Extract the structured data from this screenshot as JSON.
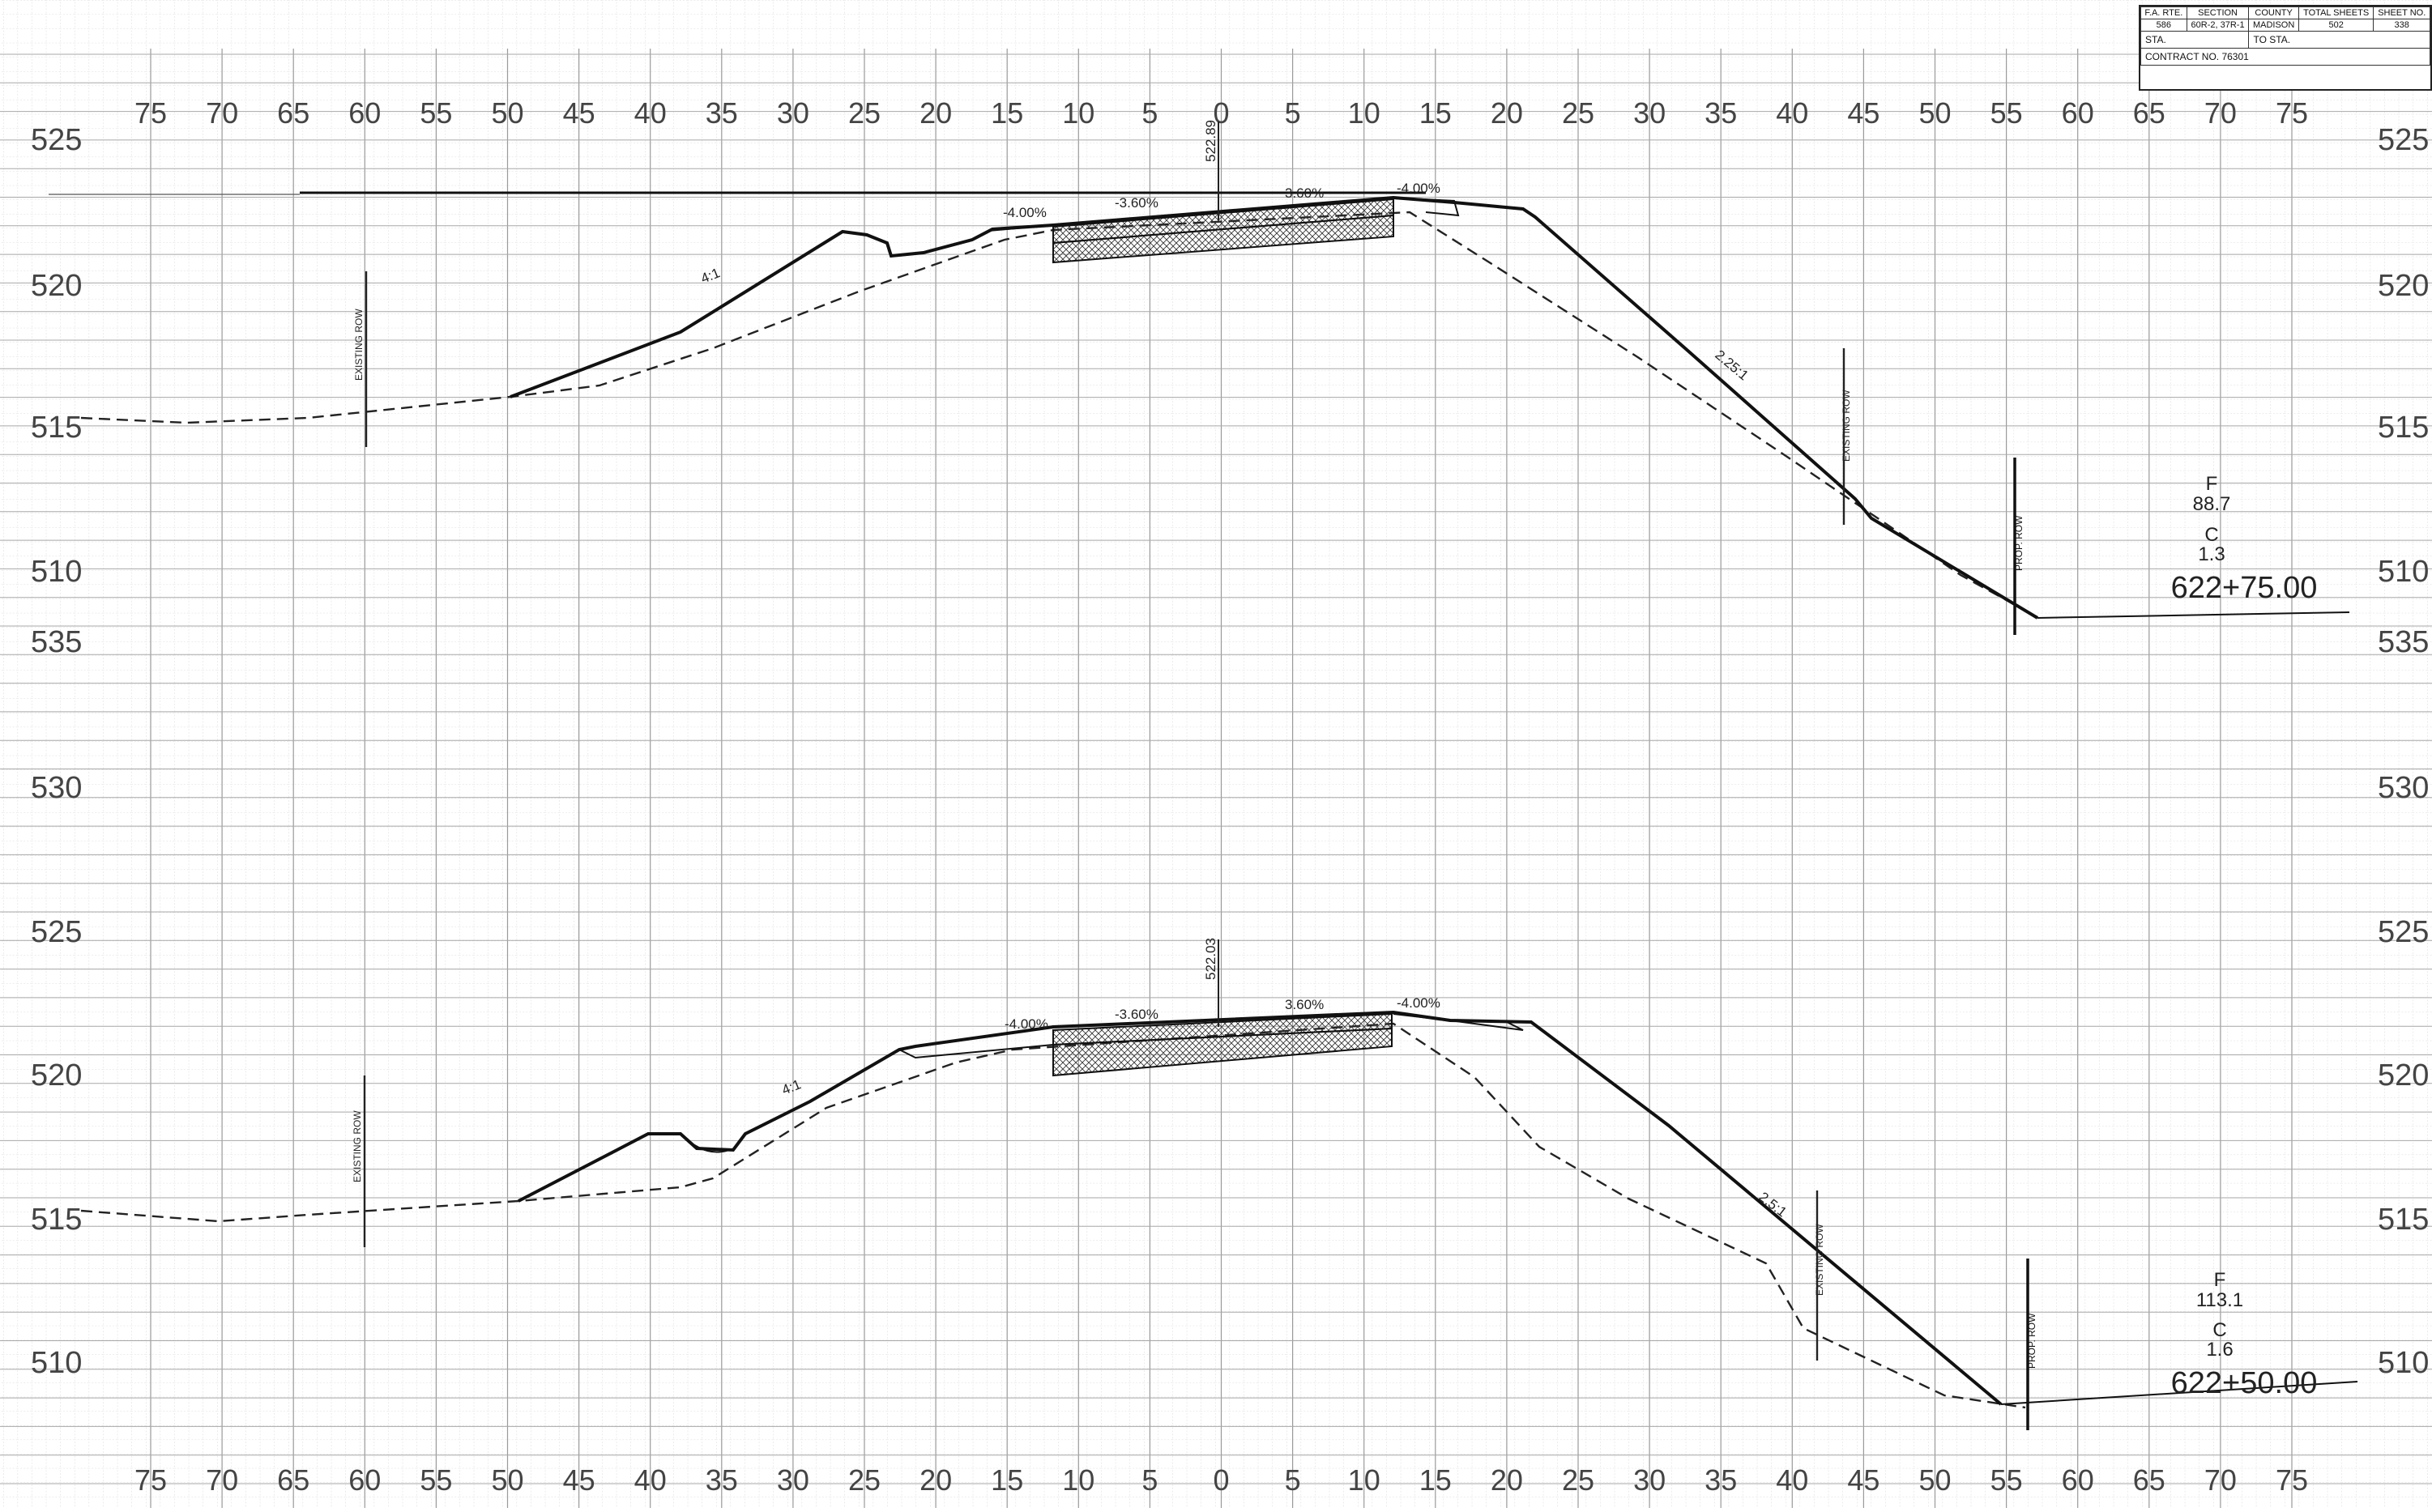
{
  "title_block": {
    "headers": [
      "F.A. RTE.",
      "SECTION",
      "COUNTY",
      "TOTAL SHEETS",
      "SHEET NO."
    ],
    "values": [
      "586",
      "60R-2, 37R-1",
      "MADISON",
      "502",
      "338"
    ],
    "sta_label": "STA.",
    "to_sta_label": "TO STA.",
    "contract": "CONTRACT NO. 76301"
  },
  "offset_labels": [
    "75",
    "70",
    "65",
    "60",
    "55",
    "50",
    "45",
    "40",
    "35",
    "30",
    "25",
    "20",
    "15",
    "10",
    "5",
    "0",
    "5",
    "10",
    "15",
    "20",
    "25",
    "30",
    "35",
    "40",
    "45",
    "50",
    "55",
    "60",
    "65",
    "70",
    "75"
  ],
  "sections": [
    {
      "station": "622+75.00",
      "fill_label": "F",
      "fill_value": "88.7",
      "cut_label": "C",
      "cut_value": "1.3",
      "elevations": [
        "525",
        "520",
        "515",
        "510"
      ],
      "bottom_elevation": "535",
      "cl_elevation": "522.89",
      "slopes": [
        "-4.00%",
        "-3.60%",
        "3.60%",
        "-4.00%"
      ],
      "side_slope_left": "4:1",
      "side_slope_right": "2.25:1",
      "row_existing": "EXISTING ROW",
      "row_proposed": "PROP. ROW"
    },
    {
      "station": "622+50.00",
      "fill_label": "F",
      "fill_value": "113.1",
      "cut_label": "C",
      "cut_value": "1.6",
      "elevations": [
        "530",
        "525",
        "520",
        "515",
        "510"
      ],
      "cl_elevation": "522.03",
      "slopes": [
        "-4.00%",
        "-3.60%",
        "3.60%",
        "-4.00%"
      ],
      "side_slope_left": "4:1",
      "side_slope_right": "2.5:1",
      "row_existing": "EXISTING ROW",
      "row_proposed": "PROP. ROW"
    }
  ],
  "colors": {
    "grid_fine": "#c9c9c9",
    "grid_major": "#8a8a8a",
    "ink": "#111111"
  }
}
